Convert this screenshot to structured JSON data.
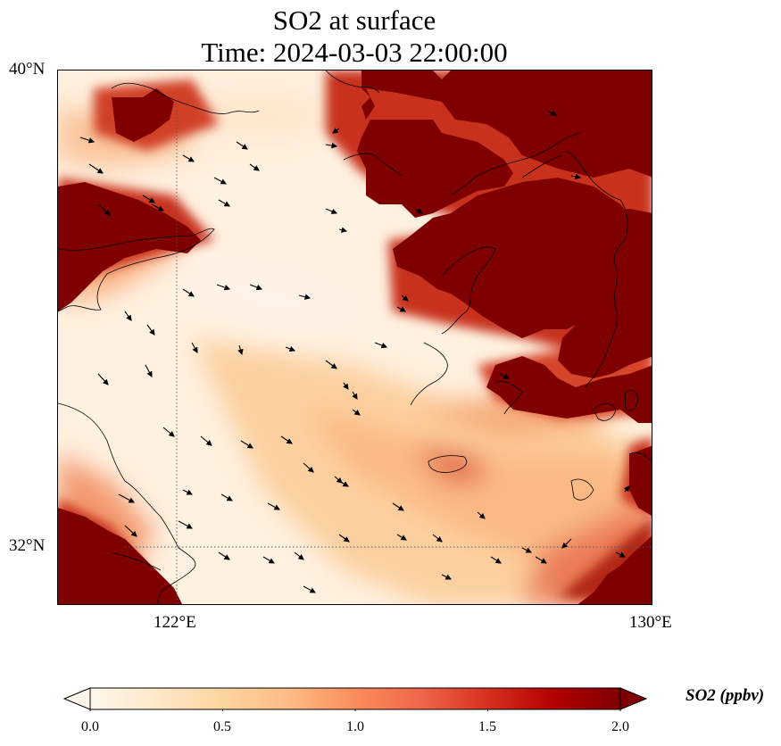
{
  "title_line1": "SO2 at surface",
  "title_line2": "Time: 2024-03-03 22:00:00",
  "lat_labels": {
    "north": "40°N",
    "south": "32°N"
  },
  "lon_labels": {
    "west": "122°E",
    "east": "130°E"
  },
  "colorbar": {
    "label": "SO2 (ppbv)",
    "ticks": [
      "0.0",
      "0.5",
      "1.0",
      "1.5",
      "2.0"
    ],
    "min": 0.0,
    "max": 2.0,
    "colormap": [
      "#fff7ec",
      "#fee8c8",
      "#fdd49e",
      "#fdbb84",
      "#fc8d59",
      "#ef6548",
      "#d7301f",
      "#b30000",
      "#7f0000"
    ],
    "extend": "both"
  },
  "map_colors": {
    "high": "#7f0000",
    "mid_high": "#c6301c",
    "mid": "#f09560",
    "low": "#fdd9ac",
    "very_low": "#fff1e0",
    "coast": "#000000",
    "gridline": "#555555"
  }
}
